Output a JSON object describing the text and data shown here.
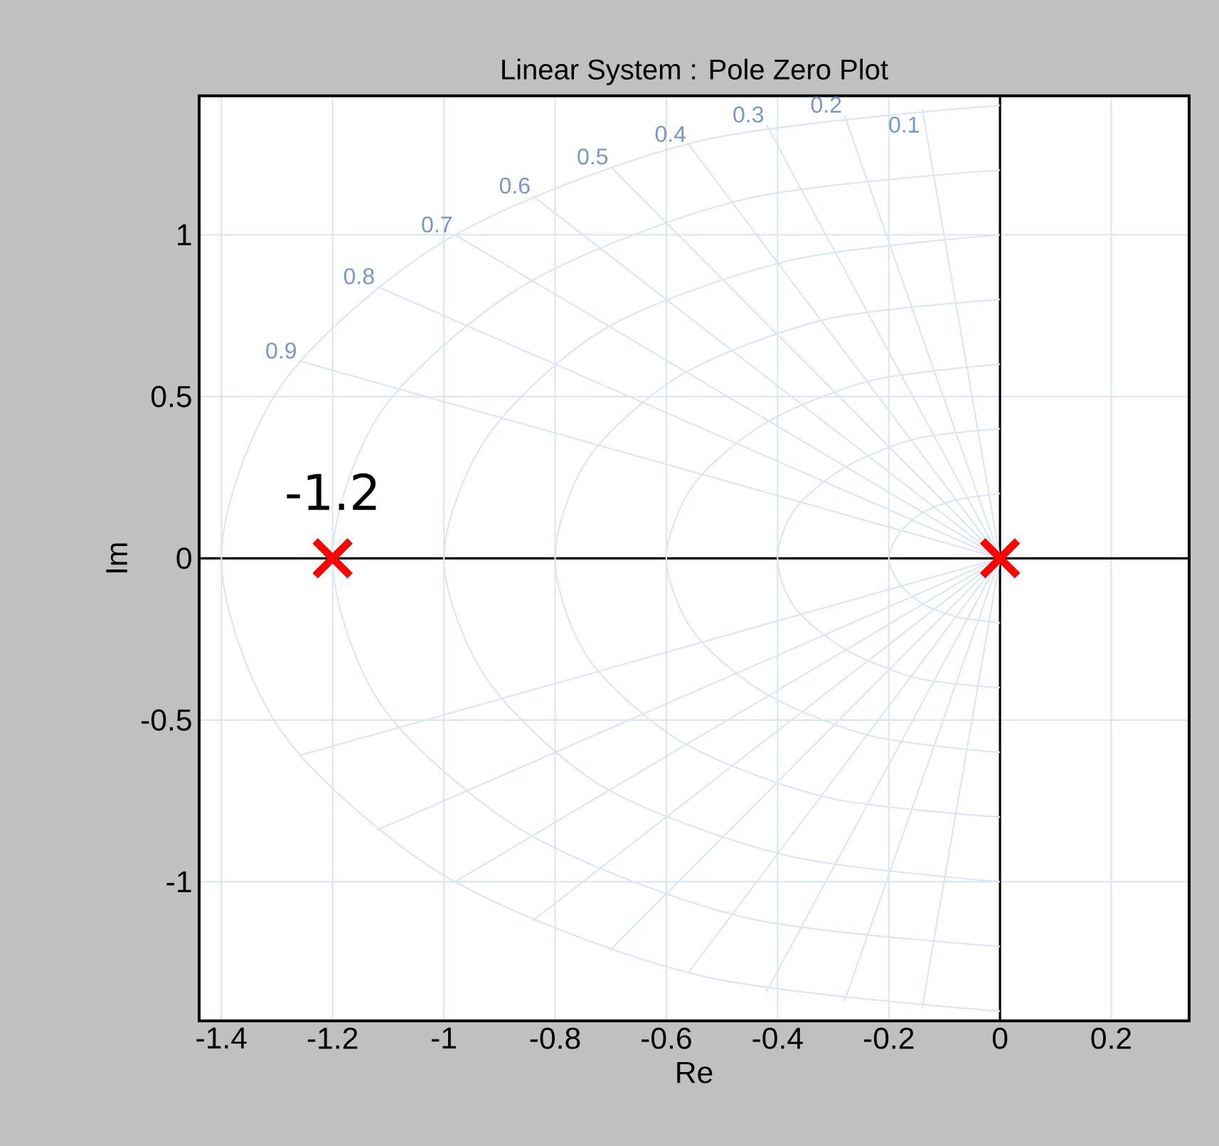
{
  "chart_data": {
    "type": "scatter",
    "title": "Linear System : Pole Zero Plot",
    "xlabel": "Re",
    "ylabel": "Im",
    "xlim": [
      -1.44,
      0.34
    ],
    "ylim": [
      -1.43,
      1.43
    ],
    "xticks": [
      -1.4,
      -1.2,
      -1,
      -0.8,
      -0.6,
      -0.4,
      -0.2,
      0,
      0.2
    ],
    "yticks": [
      -1,
      -0.5,
      0,
      0.5,
      1
    ],
    "grid": true,
    "annotations": [
      {
        "text": "-1.2",
        "x": -1.2,
        "y": 0
      },
      {
        "text": "0.1",
        "x": -0.14,
        "y": 1.39
      },
      {
        "text": "0.2",
        "x": -0.28,
        "y": 1.37
      },
      {
        "text": "0.3",
        "x": -0.42,
        "y": 1.34
      },
      {
        "text": "0.4",
        "x": -0.56,
        "y": 1.28
      },
      {
        "text": "0.5",
        "x": -0.7,
        "y": 1.21
      },
      {
        "text": "0.6",
        "x": -0.84,
        "y": 1.12
      },
      {
        "text": "0.7",
        "x": -0.98,
        "y": 1
      },
      {
        "text": "0.8",
        "x": -1.12,
        "y": 0.84
      },
      {
        "text": "0.9",
        "x": -1.26,
        "y": 0.61
      }
    ],
    "series": [
      {
        "type": "line",
        "color": "#dae6f4",
        "x": [
          0,
          -0.08,
          -0.14,
          -0.18,
          -0.2,
          -0.18,
          -0.14,
          -0.08,
          0
        ],
        "values": [
          0.2,
          0.18,
          0.14,
          0.08,
          0,
          -0.08,
          -0.14,
          -0.18,
          -0.2
        ]
      },
      {
        "type": "line",
        "color": "#dae6f4",
        "x": [
          0,
          -0.15,
          -0.28,
          -0.37,
          -0.4,
          -0.37,
          -0.28,
          -0.15,
          0
        ],
        "values": [
          0.4,
          0.37,
          0.28,
          0.15,
          0,
          -0.15,
          -0.28,
          -0.37,
          -0.4
        ]
      },
      {
        "type": "line",
        "color": "#dae6f4",
        "x": [
          0,
          -0.23,
          -0.42,
          -0.55,
          -0.6,
          -0.55,
          -0.42,
          -0.23,
          0
        ],
        "values": [
          0.6,
          0.55,
          0.42,
          0.23,
          0,
          -0.23,
          -0.42,
          -0.55,
          -0.6
        ]
      },
      {
        "type": "line",
        "color": "#dae6f4",
        "x": [
          0,
          -0.31,
          -0.57,
          -0.74,
          -0.8,
          -0.74,
          -0.57,
          -0.31,
          0
        ],
        "values": [
          0.8,
          0.74,
          0.57,
          0.31,
          0,
          -0.31,
          -0.57,
          -0.74,
          -0.8
        ]
      },
      {
        "type": "line",
        "color": "#dae6f4",
        "x": [
          0,
          -0.38,
          -0.71,
          -0.92,
          -1,
          -0.92,
          -0.71,
          -0.38,
          0
        ],
        "values": [
          1,
          0.92,
          0.71,
          0.38,
          0,
          -0.38,
          -0.71,
          -0.92,
          -1
        ]
      },
      {
        "type": "line",
        "color": "#dae6f4",
        "x": [
          0,
          -0.46,
          -0.85,
          -1.11,
          -1.2,
          -1.11,
          -0.85,
          -0.46,
          0
        ],
        "values": [
          1.2,
          1.11,
          0.85,
          0.46,
          0,
          -0.46,
          -0.85,
          -1.11,
          -1.2
        ]
      },
      {
        "type": "line",
        "color": "#dae6f4",
        "x": [
          0,
          -0.54,
          -0.99,
          -1.29,
          -1.4,
          -1.29,
          -0.99,
          -0.54,
          0
        ],
        "values": [
          1.4,
          1.29,
          0.99,
          0.54,
          0,
          -0.54,
          -0.99,
          -1.29,
          -1.4
        ]
      },
      {
        "type": "line",
        "color": "#dae6f4",
        "x": [
          -0.14,
          0,
          -0.14
        ],
        "values": [
          1.39,
          0,
          -1.39
        ]
      },
      {
        "type": "line",
        "color": "#dae6f4",
        "x": [
          -0.28,
          0,
          -0.28
        ],
        "values": [
          1.37,
          0,
          -1.37
        ]
      },
      {
        "type": "line",
        "color": "#dae6f4",
        "x": [
          -0.42,
          0,
          -0.42
        ],
        "values": [
          1.34,
          0,
          -1.34
        ]
      },
      {
        "type": "line",
        "color": "#dae6f4",
        "x": [
          -0.56,
          0,
          -0.56
        ],
        "values": [
          1.28,
          0,
          -1.28
        ]
      },
      {
        "type": "line",
        "color": "#dae6f4",
        "x": [
          -0.7,
          0,
          -0.7
        ],
        "values": [
          1.21,
          0,
          -1.21
        ]
      },
      {
        "type": "line",
        "color": "#dae6f4",
        "x": [
          -0.84,
          0,
          -0.84
        ],
        "values": [
          1.12,
          0,
          -1.12
        ]
      },
      {
        "type": "line",
        "color": "#dae6f4",
        "x": [
          -0.98,
          0,
          -0.98
        ],
        "values": [
          1,
          0,
          -1
        ]
      },
      {
        "type": "line",
        "color": "#dae6f4",
        "x": [
          -1.12,
          0,
          -1.12
        ],
        "values": [
          0.84,
          0,
          -0.84
        ]
      },
      {
        "type": "line",
        "color": "#dae6f4",
        "x": [
          -1.26,
          0,
          -1.26
        ],
        "values": [
          0.61,
          0,
          -0.61
        ]
      },
      {
        "color": "#ff0000",
        "marker": "cross",
        "x": [
          -1.2,
          0
        ],
        "values": [
          0,
          0
        ]
      }
    ]
  }
}
